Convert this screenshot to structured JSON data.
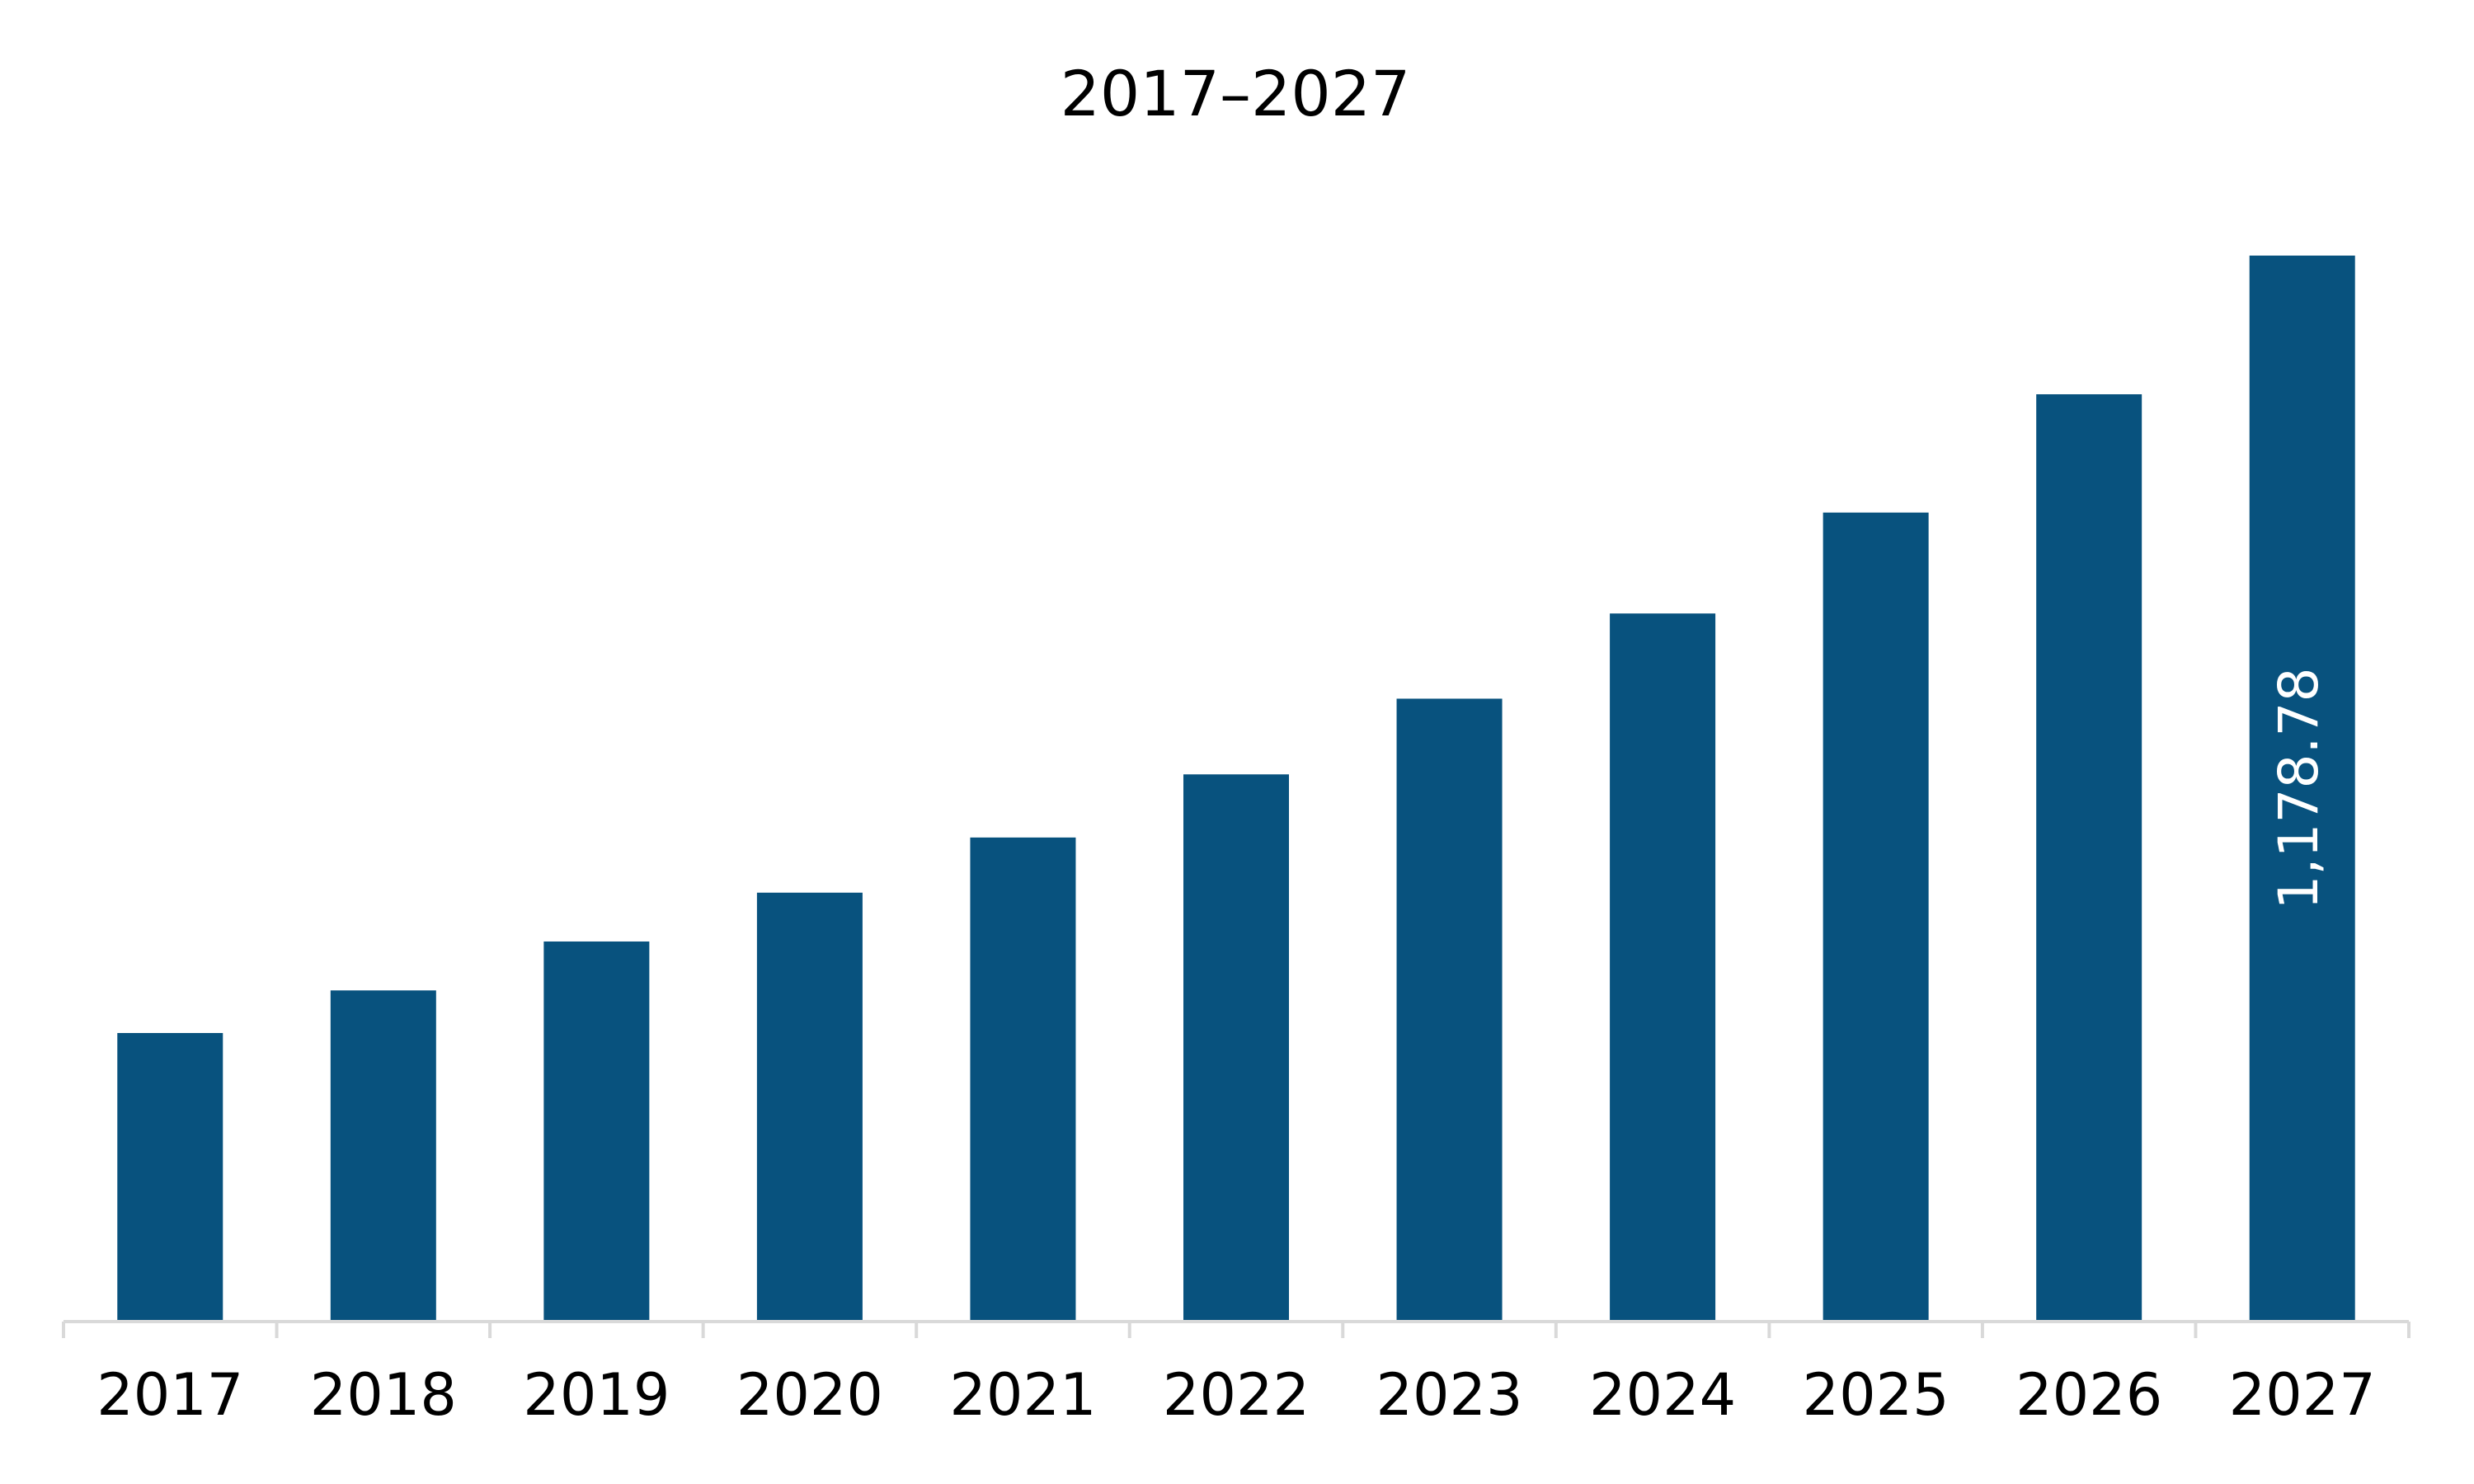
{
  "chart_data": {
    "type": "bar",
    "title": "2017–2027",
    "categories": [
      "2017",
      "2018",
      "2019",
      "2020",
      "2021",
      "2022",
      "2023",
      "2024",
      "2025",
      "2026",
      "2027"
    ],
    "values": [
      319.1,
      366.2,
      420.3,
      474.3,
      535.3,
      605.1,
      688.8,
      783.0,
      894.6,
      1025.4,
      1178.78
    ],
    "value_labels": [
      null,
      null,
      null,
      null,
      null,
      null,
      null,
      null,
      null,
      null,
      "1,178.78"
    ],
    "color": "#08527e"
  }
}
